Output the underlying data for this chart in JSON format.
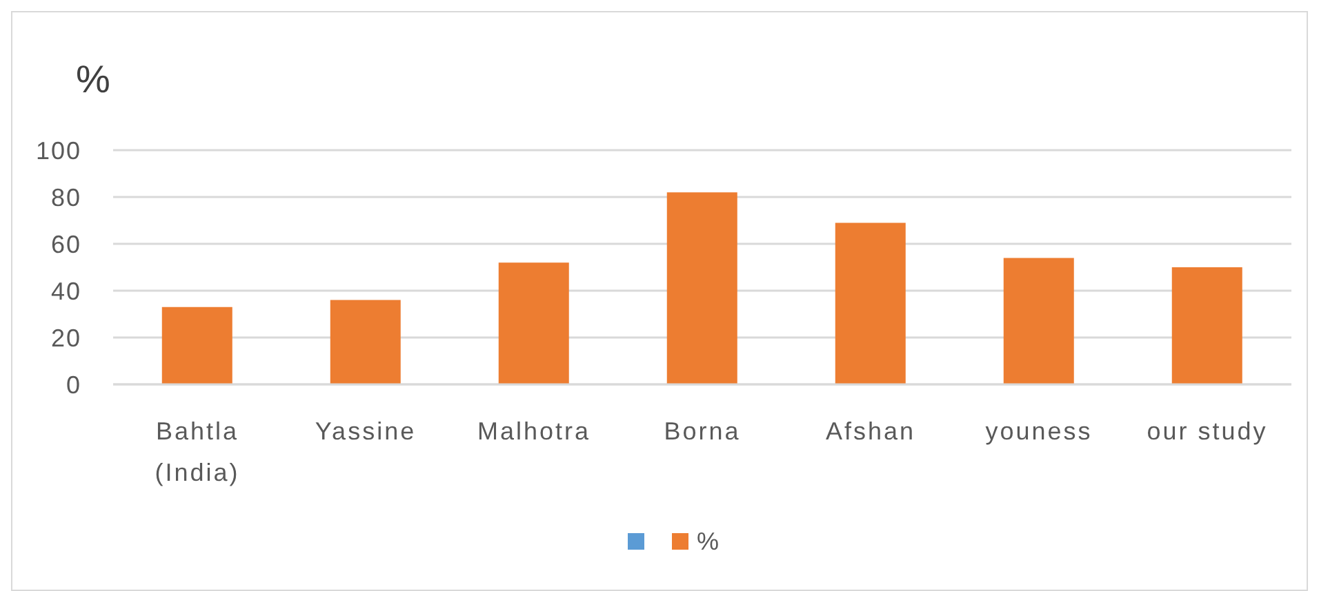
{
  "chart_data": {
    "type": "bar",
    "ylabel": "%",
    "categories": [
      "Bahtla (India)",
      "Yassine",
      "Malhotra",
      "Borna",
      "Afshan",
      "youness",
      "our study"
    ],
    "series": [
      {
        "color": "#5b9bd5",
        "values": [
          null,
          null,
          null,
          null,
          null,
          null,
          null
        ]
      },
      {
        "name": "%",
        "color": "#ed7d31",
        "values": [
          33,
          36,
          52,
          82,
          69,
          54,
          50
        ]
      }
    ],
    "ylim": [
      0,
      100
    ],
    "yticks": [
      0,
      20,
      40,
      60,
      80,
      100
    ],
    "grid": "y",
    "legend": "bottom"
  }
}
